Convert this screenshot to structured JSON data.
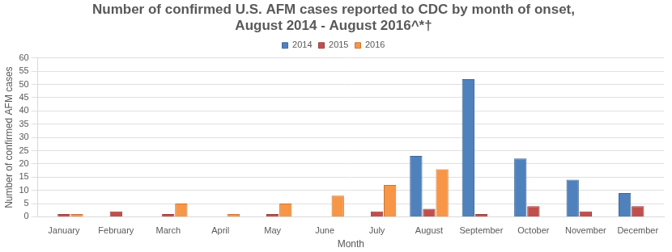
{
  "chart_data": {
    "type": "bar",
    "title": [
      "Number of confirmed U.S. AFM cases reported to CDC by month of onset,",
      "August 2014 - August 2016^*†"
    ],
    "x_label": "Month",
    "y_label": "Number of confirmed AFM cases",
    "categories": [
      "January",
      "February",
      "March",
      "April",
      "May",
      "June",
      "July",
      "August",
      "September",
      "October",
      "November",
      "December"
    ],
    "series": [
      {
        "name": "2014",
        "color": "#4F81BD",
        "values": [
          null,
          null,
          null,
          null,
          null,
          null,
          null,
          23,
          52,
          22,
          14,
          9
        ]
      },
      {
        "name": "2015",
        "color": "#C0504D",
        "values": [
          1,
          2,
          1,
          0,
          1,
          0,
          2,
          3,
          1,
          4,
          2,
          4
        ]
      },
      {
        "name": "2016",
        "color": "#F79646",
        "values": [
          1,
          0,
          5,
          1,
          5,
          8,
          12,
          18,
          null,
          null,
          null,
          null
        ]
      }
    ],
    "ylim": [
      0,
      60
    ],
    "yticks": [
      0,
      5,
      10,
      15,
      20,
      25,
      30,
      35,
      40,
      45,
      50,
      55,
      60
    ],
    "grid": true,
    "legend": "top"
  }
}
